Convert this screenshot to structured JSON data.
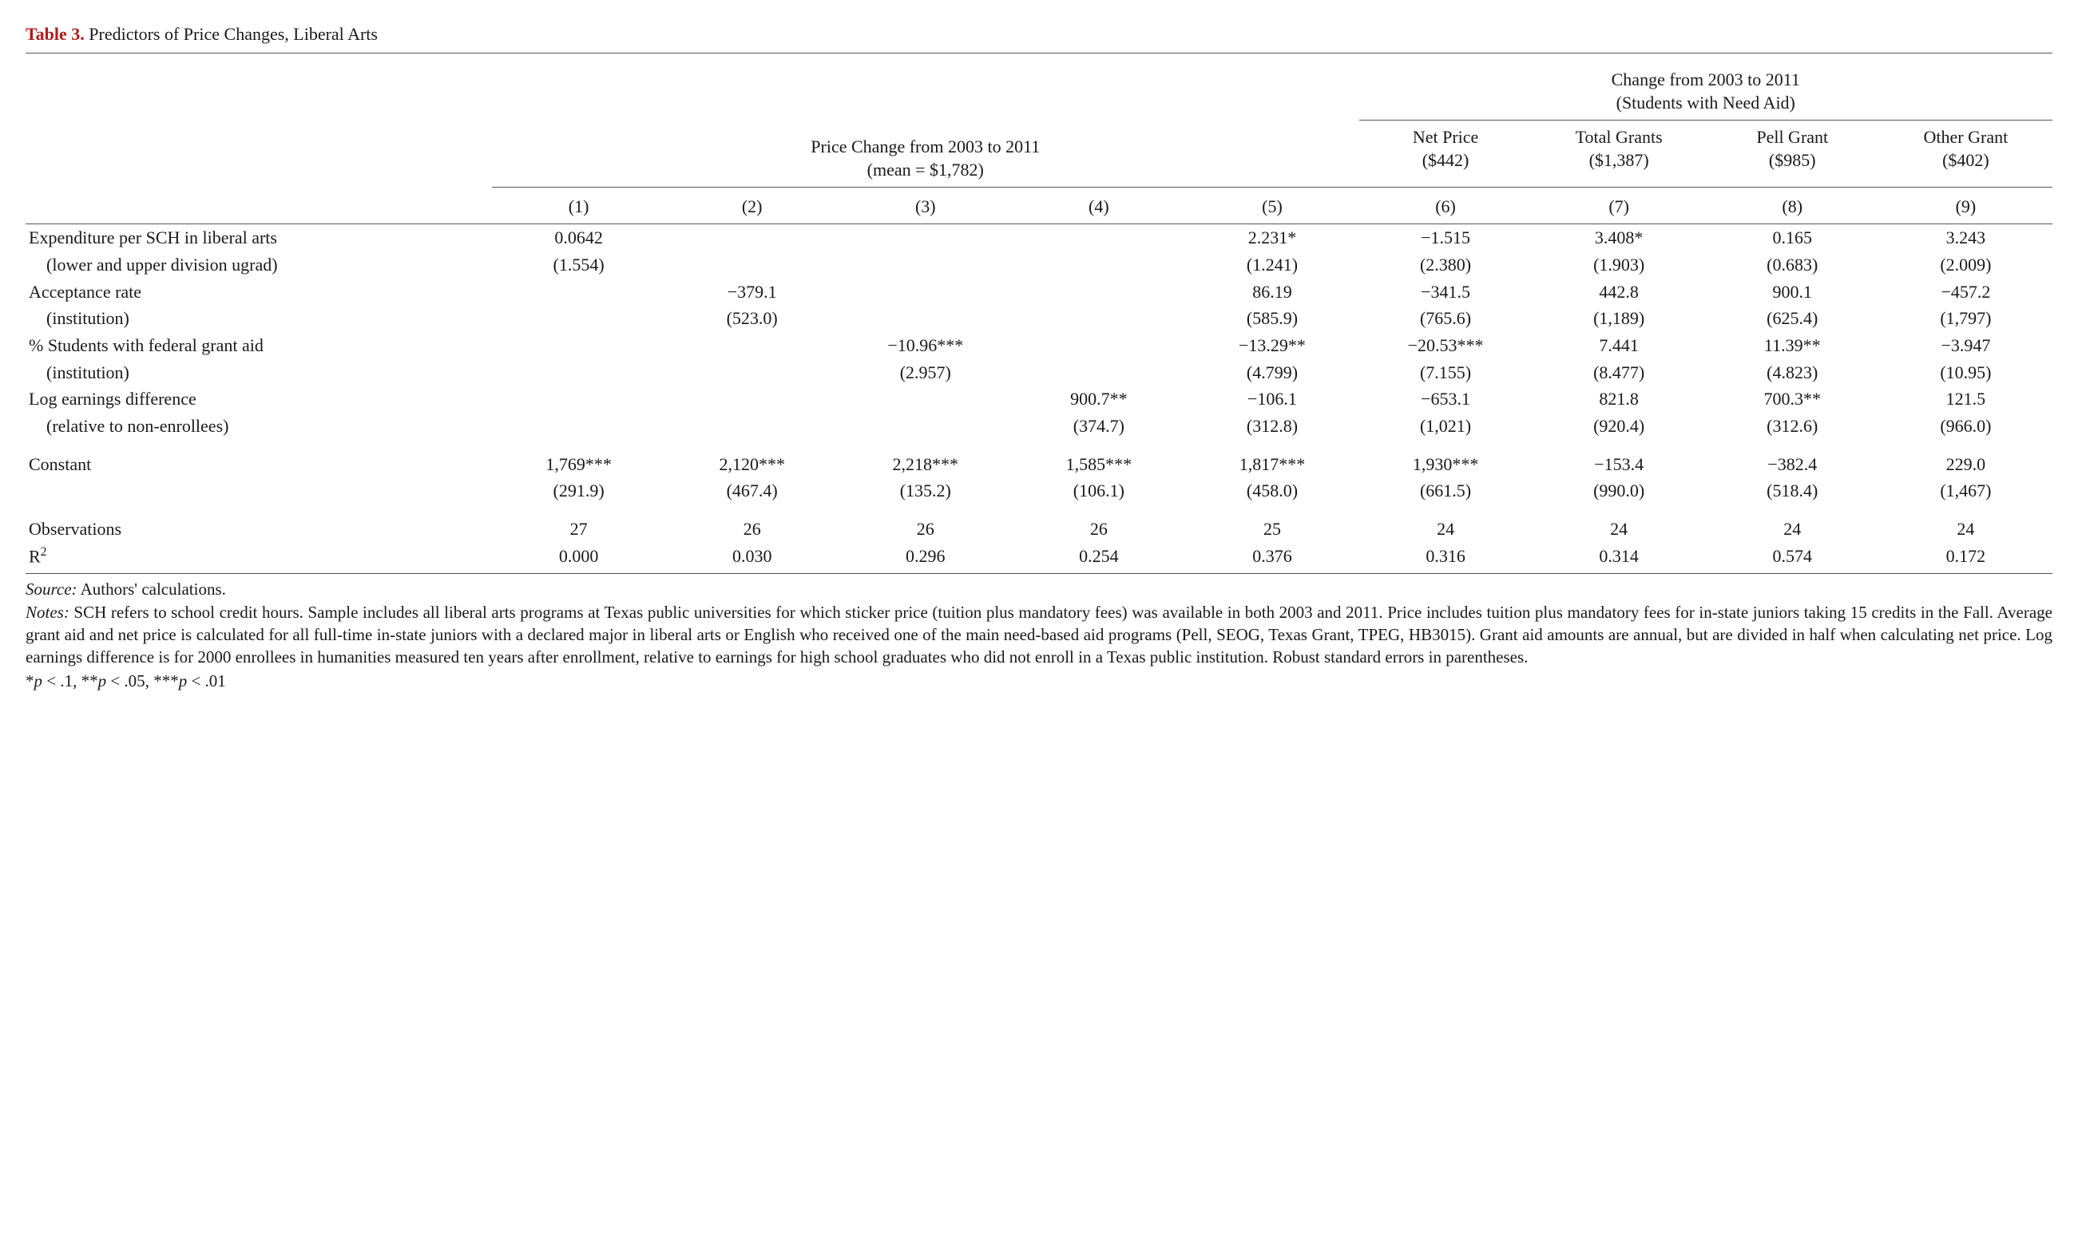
{
  "title": {
    "label": "Table 3.",
    "text": "Predictors of Price Changes, Liberal Arts"
  },
  "spanners": {
    "left": {
      "line1": "Price Change from 2003 to 2011",
      "line2": "(mean = $1,782)"
    },
    "right": {
      "line1": "Change from 2003 to 2011",
      "line2": "(Students with Need Aid)"
    }
  },
  "subheads": {
    "c6": {
      "l1": "Net Price",
      "l2": "($442)"
    },
    "c7": {
      "l1": "Total Grants",
      "l2": "($1,387)"
    },
    "c8": {
      "l1": "Pell Grant",
      "l2": "($985)"
    },
    "c9": {
      "l1": "Other Grant",
      "l2": "($402)"
    }
  },
  "colnums": {
    "c1": "(1)",
    "c2": "(2)",
    "c3": "(3)",
    "c4": "(4)",
    "c5": "(5)",
    "c6": "(6)",
    "c7": "(7)",
    "c8": "(8)",
    "c9": "(9)"
  },
  "rows": {
    "r1": {
      "h": "Expenditure per SCH in liberal arts",
      "c1": "0.0642",
      "c2": "",
      "c3": "",
      "c4": "",
      "c5": "2.231*",
      "c6": "−1.515",
      "c7": "3.408*",
      "c8": "0.165",
      "c9": "3.243"
    },
    "r1b": {
      "h": "(lower and upper division ugrad)",
      "c1": "(1.554)",
      "c2": "",
      "c3": "",
      "c4": "",
      "c5": "(1.241)",
      "c6": "(2.380)",
      "c7": "(1.903)",
      "c8": "(0.683)",
      "c9": "(2.009)"
    },
    "r2": {
      "h": "Acceptance rate",
      "c1": "",
      "c2": "−379.1",
      "c3": "",
      "c4": "",
      "c5": "86.19",
      "c6": "−341.5",
      "c7": "442.8",
      "c8": "900.1",
      "c9": "−457.2"
    },
    "r2b": {
      "h": "(institution)",
      "c1": "",
      "c2": "(523.0)",
      "c3": "",
      "c4": "",
      "c5": "(585.9)",
      "c6": "(765.6)",
      "c7": "(1,189)",
      "c8": "(625.4)",
      "c9": "(1,797)"
    },
    "r3": {
      "h": "% Students with federal grant aid",
      "c1": "",
      "c2": "",
      "c3": "−10.96***",
      "c4": "",
      "c5": "−13.29**",
      "c6": "−20.53***",
      "c7": "7.441",
      "c8": "11.39**",
      "c9": "−3.947"
    },
    "r3b": {
      "h": "(institution)",
      "c1": "",
      "c2": "",
      "c3": "(2.957)",
      "c4": "",
      "c5": "(4.799)",
      "c6": "(7.155)",
      "c7": "(8.477)",
      "c8": "(4.823)",
      "c9": "(10.95)"
    },
    "r4": {
      "h": "Log earnings difference",
      "c1": "",
      "c2": "",
      "c3": "",
      "c4": "900.7**",
      "c5": "−106.1",
      "c6": "−653.1",
      "c7": "821.8",
      "c8": "700.3**",
      "c9": "121.5"
    },
    "r4b": {
      "h": "(relative to non-enrollees)",
      "c1": "",
      "c2": "",
      "c3": "",
      "c4": "(374.7)",
      "c5": "(312.8)",
      "c6": "(1,021)",
      "c7": "(920.4)",
      "c8": "(312.6)",
      "c9": "(966.0)"
    },
    "r5": {
      "h": "Constant",
      "c1": "1,769***",
      "c2": "2,120***",
      "c3": "2,218***",
      "c4": "1,585***",
      "c5": "1,817***",
      "c6": "1,930***",
      "c7": "−153.4",
      "c8": "−382.4",
      "c9": "229.0"
    },
    "r5b": {
      "h": "",
      "c1": "(291.9)",
      "c2": "(467.4)",
      "c3": "(135.2)",
      "c4": "(106.1)",
      "c5": "(458.0)",
      "c6": "(661.5)",
      "c7": "(990.0)",
      "c8": "(518.4)",
      "c9": "(1,467)"
    },
    "r6": {
      "h": "Observations",
      "c1": "27",
      "c2": "26",
      "c3": "26",
      "c4": "26",
      "c5": "25",
      "c6": "24",
      "c7": "24",
      "c8": "24",
      "c9": "24"
    },
    "r7": {
      "h_pre": "R",
      "h_sup": "2",
      "c1": "0.000",
      "c2": "0.030",
      "c3": "0.296",
      "c4": "0.254",
      "c5": "0.376",
      "c6": "0.316",
      "c7": "0.314",
      "c8": "0.574",
      "c9": "0.172"
    }
  },
  "footer": {
    "source_label": "Source:",
    "source_text": " Authors' calculations.",
    "notes_label": "Notes:",
    "notes_text": " SCH refers to school credit hours. Sample includes all liberal arts programs at Texas public universities for which sticker price (tuition plus mandatory fees) was available in both 2003 and 2011. Price includes tuition plus mandatory fees for in-state juniors taking 15 credits in the Fall. Average grant aid and net price is calculated for all full-time in-state juniors with a declared major in liberal arts or English who received one of the main need-based aid programs (Pell, SEOG, Texas Grant, TPEG, HB3015). Grant aid amounts are annual, but are divided in half when calculating net price. Log earnings difference is for 2000 enrollees in humanities measured ten years after enrollment, relative to earnings for high school graduates who did not enroll in a Texas public institution. Robust standard errors in parentheses.",
    "sig1_pre": "*",
    "sig1_txt": " < .1, ",
    "sig2_pre": "**",
    "sig2_txt": " < .05, ",
    "sig3_pre": "***",
    "sig3_txt": " < .01",
    "p": "p"
  },
  "style": {
    "label_color": "#b31b1b",
    "rule_color": "#555",
    "font_family": "Times New Roman",
    "base_fontsize_pt": 16
  }
}
